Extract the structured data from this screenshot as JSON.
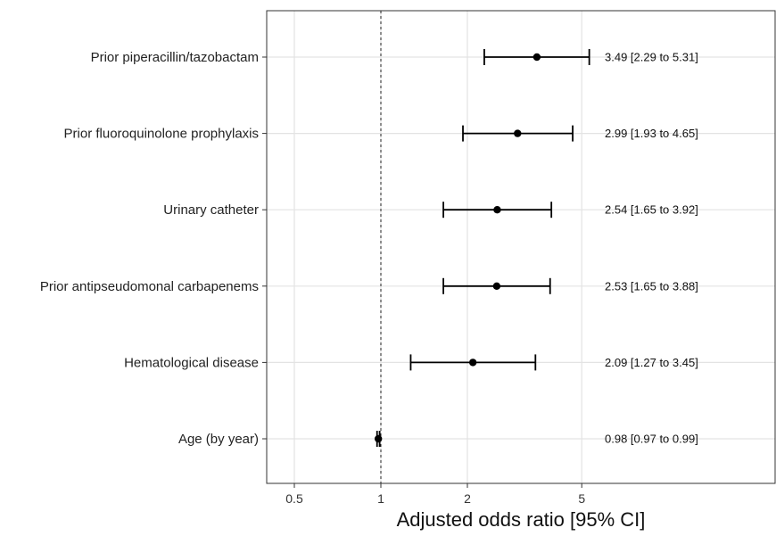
{
  "chart_data": {
    "type": "scatter",
    "subtype": "forest-plot",
    "xlabel": "Adjusted odds ratio [95% CI]",
    "x_scale": "log",
    "xlim": [
      0.4,
      12
    ],
    "x_ticks": [
      0.5,
      1,
      2,
      5
    ],
    "x_tick_labels": [
      "0.5",
      "1",
      "2",
      "5"
    ],
    "reference_line": 1,
    "grid": true,
    "rows": [
      {
        "label": "Prior piperacillin/tazobactam",
        "or": 3.49,
        "lower": 2.29,
        "upper": 5.31,
        "ci_text": "3.49 [2.29 to 5.31]"
      },
      {
        "label": "Prior fluoroquinolone prophylaxis",
        "or": 2.99,
        "lower": 1.93,
        "upper": 4.65,
        "ci_text": "2.99 [1.93 to 4.65]"
      },
      {
        "label": "Urinary catheter",
        "or": 2.54,
        "lower": 1.65,
        "upper": 3.92,
        "ci_text": "2.54 [1.65 to 3.92]"
      },
      {
        "label": "Prior antipseudomonal carbapenems",
        "or": 2.53,
        "lower": 1.65,
        "upper": 3.88,
        "ci_text": "2.53 [1.65 to 3.88]"
      },
      {
        "label": "Hematological disease",
        "or": 2.09,
        "lower": 1.27,
        "upper": 3.45,
        "ci_text": "2.09 [1.27 to 3.45]"
      },
      {
        "label": "Age (by year)",
        "or": 0.98,
        "lower": 0.97,
        "upper": 0.99,
        "ci_text": "0.98 [0.97 to 0.99]"
      }
    ],
    "colors": {
      "point": "#000000",
      "grid": "#e3e3e3",
      "border": "#333333"
    }
  }
}
